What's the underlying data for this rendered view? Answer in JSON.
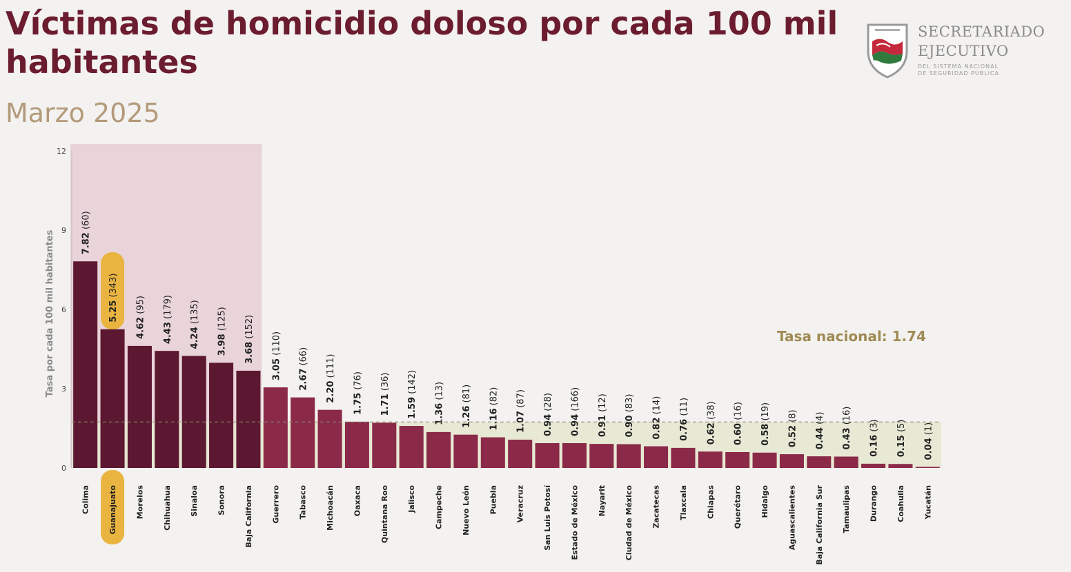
{
  "header": {
    "title": "Víctimas de homicidio doloso por cada 100 mil habitantes",
    "subtitle": "Marzo 2025"
  },
  "logo": {
    "icon": "mexico-map-shield-icon",
    "name_line1": "SECRETARIADO",
    "name_line2": "EJECUTIVO",
    "sub_line1": "DEL SISTEMA NACIONAL",
    "sub_line2": "DE SEGURIDAD PÚBLICA"
  },
  "colors": {
    "top_bar": "#5c1830",
    "bar": "#8b2a48",
    "top_highlight": "#e6cfd6",
    "national_band": "#e7e8d2",
    "national_text": "#a08a54",
    "guanajuato_highlight": "#e9b440"
  },
  "chart_data": {
    "type": "bar",
    "title": "Víctimas de homicidio doloso por cada 100 mil habitantes",
    "subtitle": "Marzo 2025",
    "ylabel": "Tasa por cada 100 mil habitantes",
    "xlabel": "",
    "ylim": [
      0,
      12
    ],
    "yticks": [
      "0",
      "3",
      "6",
      "9",
      "12"
    ],
    "grid": false,
    "highlighted_category": "Guanajuato",
    "top_group_count": 7,
    "national_rate": 1.74,
    "national_label": "Tasa nacional: 1.74",
    "categories": [
      "Colima",
      "Guanajuato",
      "Morelos",
      "Chihuahua",
      "Sinaloa",
      "Sonora",
      "Baja California",
      "Guerrero",
      "Tabasco",
      "Michoacán",
      "Oaxaca",
      "Quintana Roo",
      "Jalisco",
      "Campeche",
      "Nuevo León",
      "Puebla",
      "Veracruz",
      "San Luis Potosí",
      "Estado de México",
      "Nayarit",
      "Ciudad de México",
      "Zacatecas",
      "Tlaxcala",
      "Chiapas",
      "Querétaro",
      "Hidalgo",
      "Aguascalientes",
      "Baja California Sur",
      "Tamaulipas",
      "Durango",
      "Coahuila",
      "Yucatán"
    ],
    "values": [
      7.82,
      5.25,
      4.62,
      4.43,
      4.24,
      3.98,
      3.68,
      3.05,
      2.67,
      2.2,
      1.75,
      1.71,
      1.59,
      1.36,
      1.26,
      1.16,
      1.07,
      0.94,
      0.94,
      0.91,
      0.9,
      0.82,
      0.76,
      0.62,
      0.6,
      0.58,
      0.52,
      0.44,
      0.43,
      0.16,
      0.15,
      0.04
    ],
    "value_labels": [
      "7.82",
      "5.25",
      "4.62",
      "4.43",
      "4.24",
      "3.98",
      "3.68",
      "3.05",
      "2.67",
      "2.20",
      "1.75",
      "1.71",
      "1.59",
      "1.36",
      "1.26",
      "1.16",
      "1.07",
      "0.94",
      "0.94",
      "0.91",
      "0.90",
      "0.82",
      "0.76",
      "0.62",
      "0.60",
      "0.58",
      "0.52",
      "0.44",
      "0.43",
      "0.16",
      "0.15",
      "0.04"
    ],
    "victims_labels": [
      "(60)",
      "(343)",
      "(95)",
      "(179)",
      "(135)",
      "(125)",
      "(152)",
      "(110)",
      "(66)",
      "(111)",
      "(76)",
      "(36)",
      "(142)",
      "(13)",
      "(81)",
      "(82)",
      "(87)",
      "(28)",
      "(166)",
      "(12)",
      "(83)",
      "(14)",
      "(11)",
      "(38)",
      "(16)",
      "(19)",
      "(8)",
      "(4)",
      "(16)",
      "(3)",
      "(5)",
      "(1)"
    ]
  }
}
